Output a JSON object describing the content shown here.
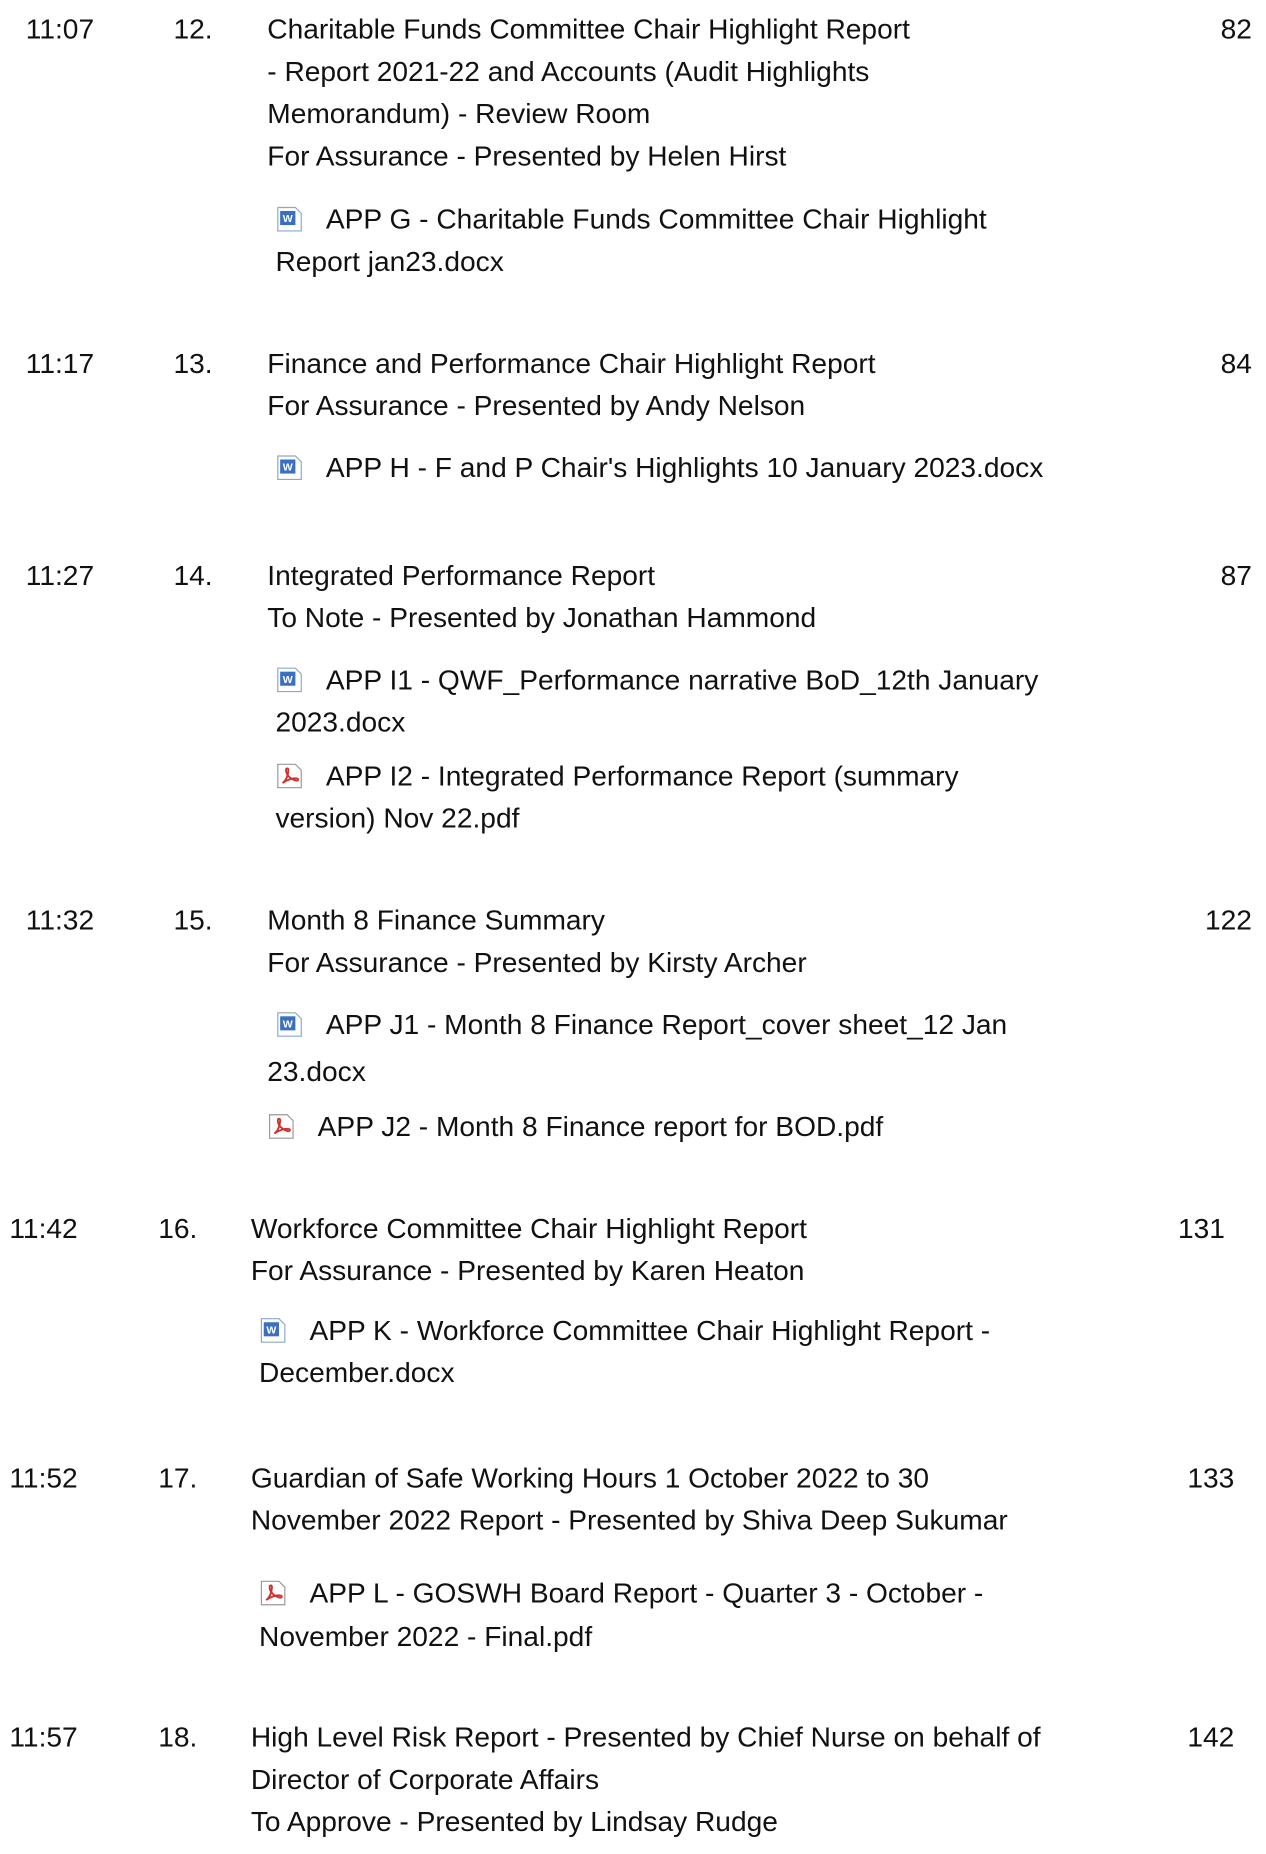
{
  "items": [
    {
      "time": "11:07",
      "number": "12.",
      "page": "82",
      "lines": [
        "Charitable Funds Committee Chair Highlight Report",
        "- Report 2021-22 and Accounts (Audit Highlights",
        "Memorandum) - Review Room",
        "For Assurance - Presented by Helen Hirst"
      ],
      "attachments": [
        {
          "lines": [
            "APP G - Charitable Funds Committee Chair Highlight",
            "Report jan23.docx"
          ]
        }
      ]
    },
    {
      "time": "11:17",
      "number": "13.",
      "page": "84",
      "lines": [
        "Finance and Performance Chair Highlight Report",
        "For Assurance - Presented by Andy Nelson"
      ],
      "attachments": [
        {
          "lines": [
            "APP H - F and P Chair's Highlights 10 January 2023.docx"
          ]
        }
      ]
    },
    {
      "time": "11:27",
      "number": "14.",
      "page": "87",
      "lines": [
        "Integrated Performance Report",
        "To Note - Presented by Jonathan Hammond"
      ],
      "attachments": [
        {
          "lines": [
            "APP I1 - QWF_Performance narrative BoD_12th January",
            "2023.docx"
          ]
        },
        {
          "lines": [
            "APP I2 - Integrated Performance Report (summary",
            "version) Nov 22.pdf"
          ]
        }
      ]
    },
    {
      "time": "11:32",
      "number": "15.",
      "page": "122",
      "lines": [
        "Month 8 Finance Summary",
        "For Assurance - Presented by Kirsty Archer"
      ],
      "attachments": [
        {
          "lines": [
            "APP J1 - Month 8 Finance Report_cover sheet_12 Jan",
            "23.docx"
          ]
        },
        {
          "lines": [
            "APP J2 - Month 8 Finance report for BOD.pdf"
          ]
        }
      ]
    },
    {
      "time": "11:42",
      "number": "16.",
      "page": "131",
      "lines": [
        "Workforce Committee Chair Highlight Report",
        "For Assurance - Presented by Karen Heaton"
      ],
      "attachments": [
        {
          "lines": [
            "APP K - Workforce Committee Chair Highlight Report -",
            "December.docx"
          ]
        }
      ]
    },
    {
      "time": "11:52",
      "number": "17.",
      "page": "133",
      "lines": [
        "Guardian of Safe Working Hours 1 October 2022 to 30",
        "November 2022 Report - Presented by Shiva Deep Sukumar"
      ],
      "attachments": [
        {
          "lines": [
            "APP L - GOSWH Board Report - Quarter 3 - October -",
            "November 2022 - Final.pdf"
          ]
        }
      ]
    },
    {
      "time": "11:57",
      "number": "18.",
      "page": "142",
      "lines": [
        "High Level Risk Report - Presented by Chief Nurse on behalf of",
        "Director of Corporate Affairs",
        "To Approve - Presented by Lindsay Rudge"
      ],
      "attachments": []
    }
  ]
}
